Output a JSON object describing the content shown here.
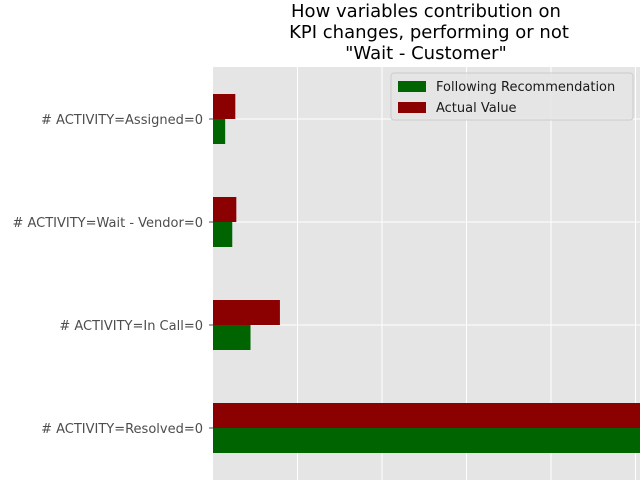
{
  "chart_data": {
    "type": "bar",
    "orientation": "horizontal",
    "title_lines": [
      "How variables contribution on",
      "KPI changes, performing or not",
      "\"Wait - Customer\""
    ],
    "categories": [
      "# ACTIVITY=Resolved=0",
      "# ACTIVITY=In Call=0",
      "# ACTIVITY=Wait - Vendor=0",
      "# ACTIVITY=Assigned=0"
    ],
    "series": [
      {
        "name": "Following Recommendation",
        "color": "#006400",
        "values": [
          0.487,
          0.037,
          0.019,
          0.012
        ]
      },
      {
        "name": "Actual Value",
        "color": "#8b0000",
        "values": [
          0.488,
          0.066,
          0.023,
          0.022
        ]
      }
    ],
    "xlim": [
      0,
      0.5
    ],
    "x_ticks_hidden": true,
    "grid": true,
    "background": "#e5e5e5",
    "legend_position": "top-right"
  }
}
